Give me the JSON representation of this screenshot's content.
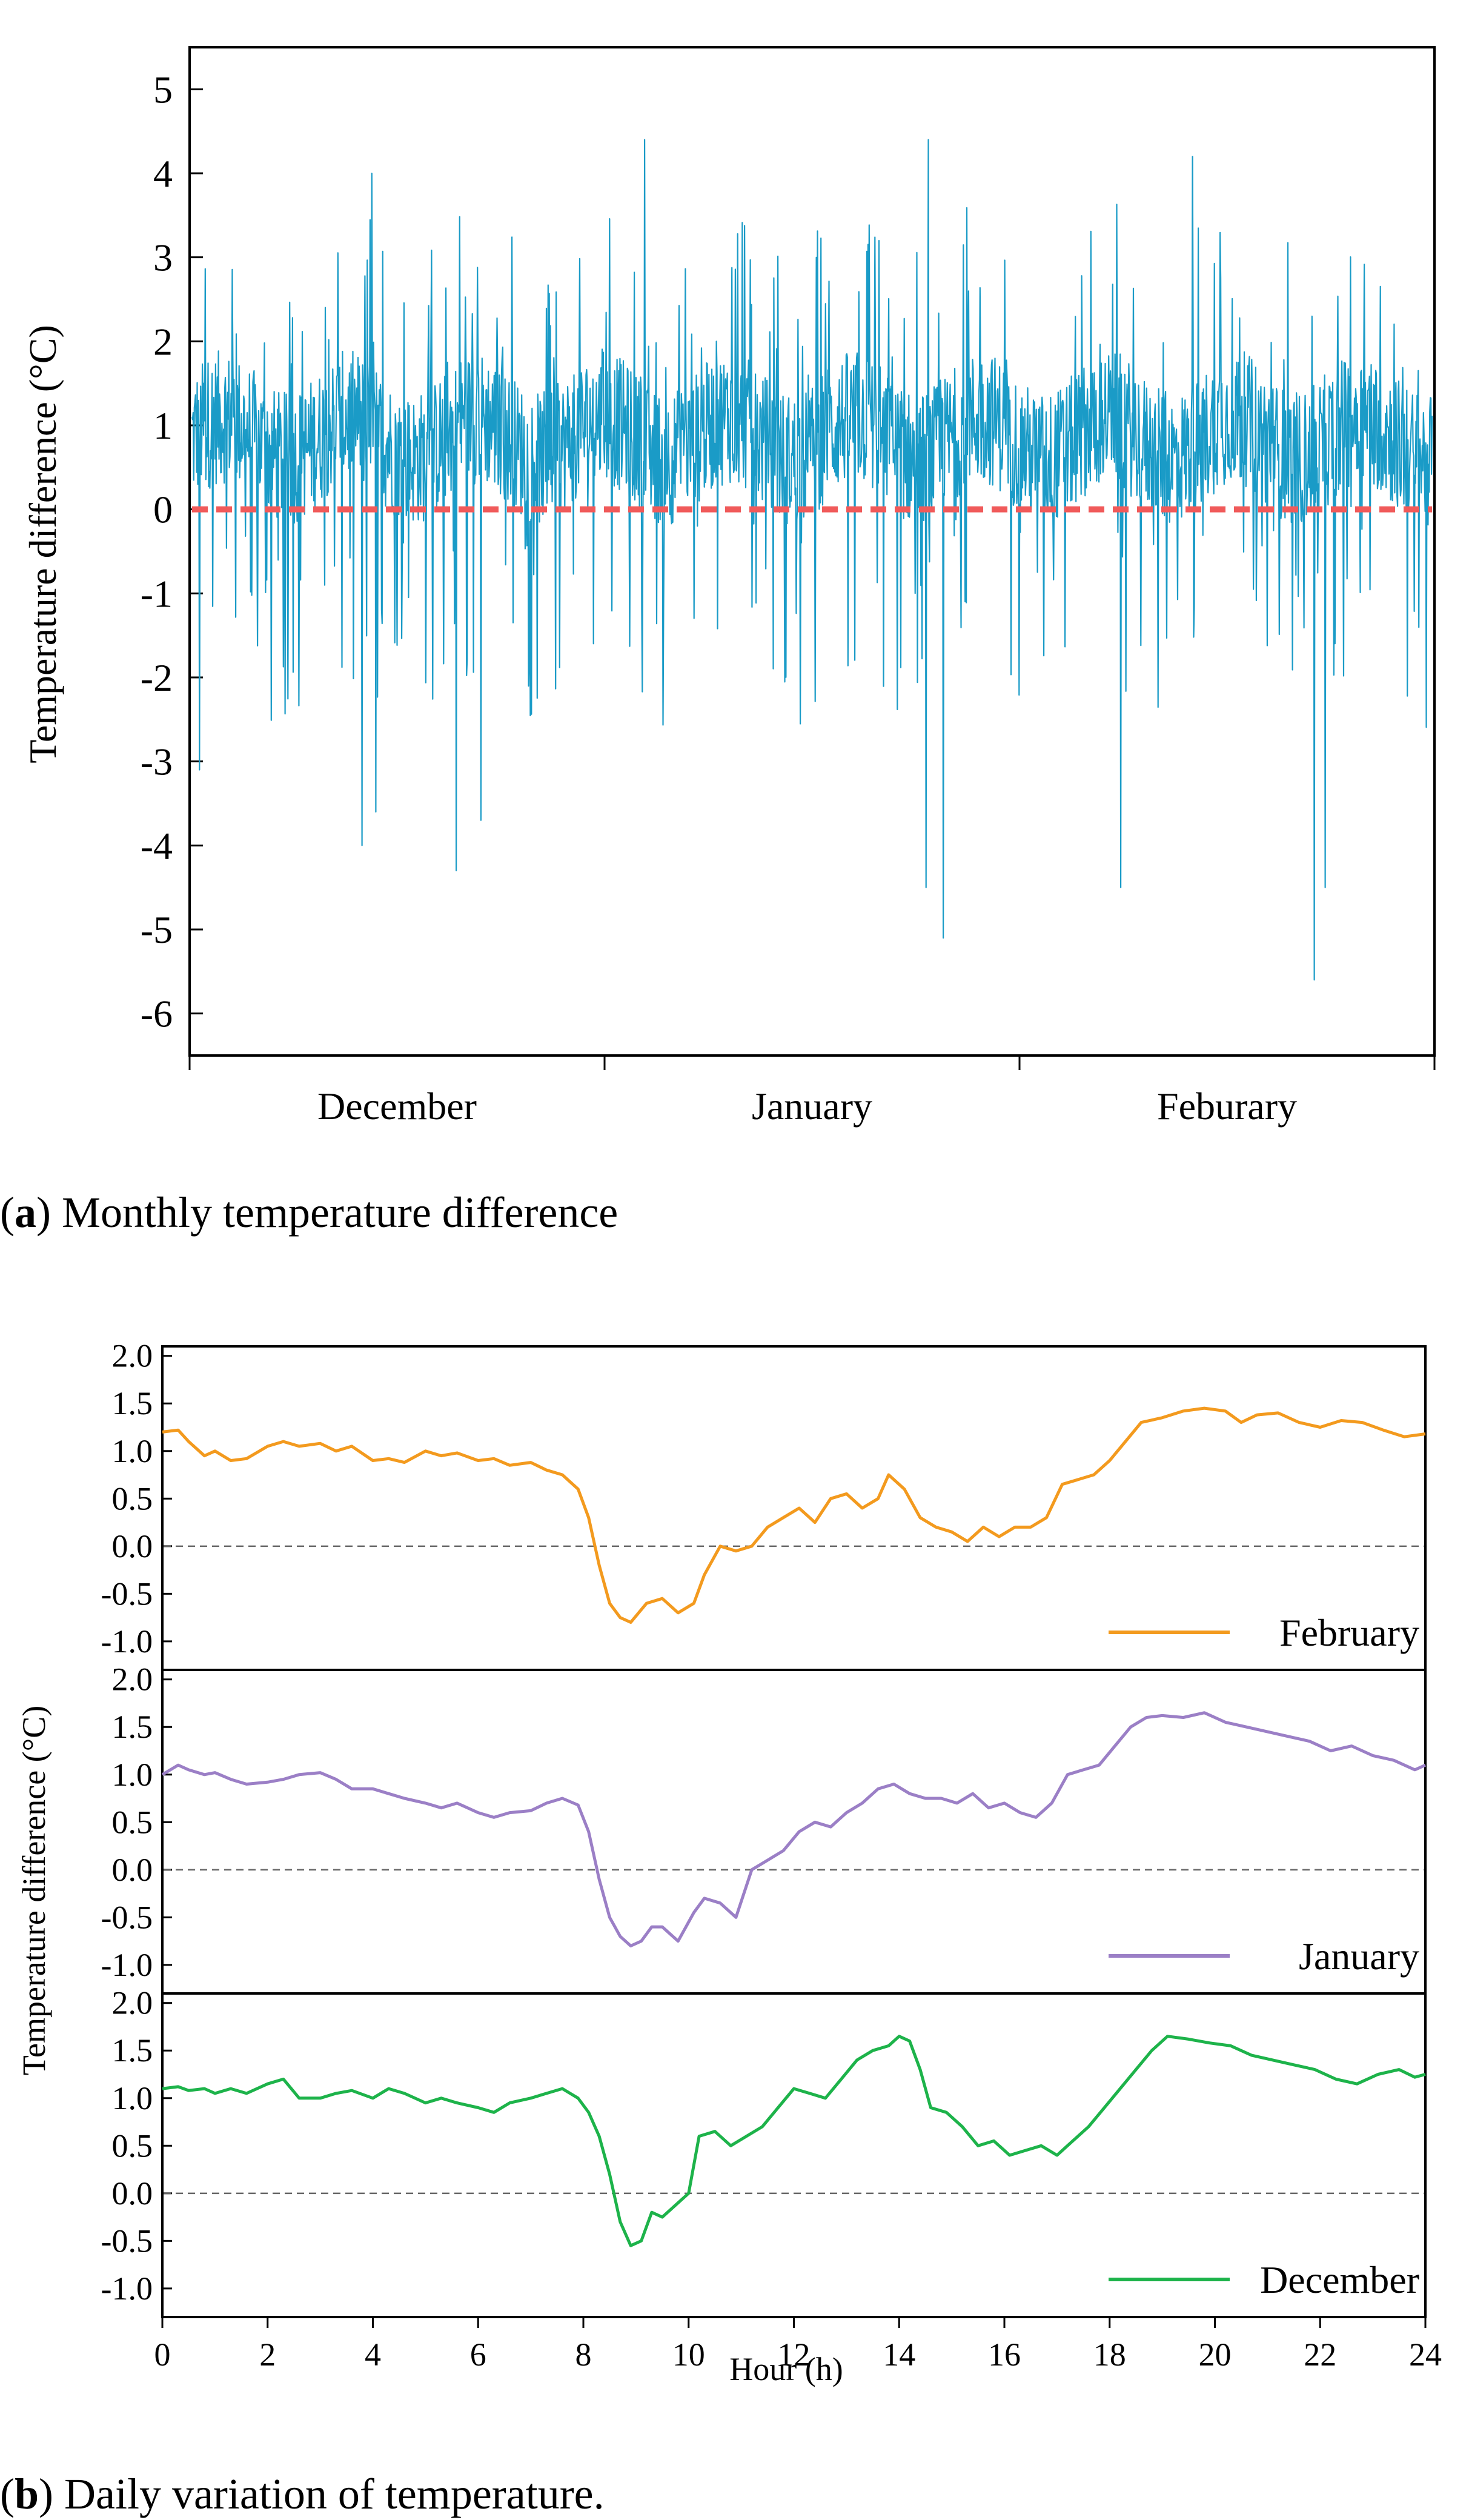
{
  "chart_data": [
    {
      "id": "monthly",
      "type": "line",
      "caption_letter": "a",
      "caption_text": ") Monthly temperature difference",
      "ylabel": "Temperature difference (°C)",
      "ylim": [
        -6.5,
        5.5
      ],
      "yticks": [
        5,
        4,
        3,
        2,
        1,
        0,
        -1,
        -2,
        -3,
        -4,
        -5,
        -6
      ],
      "ytick_labels": [
        "5",
        "4",
        "3",
        "2",
        "1",
        "0",
        "-1",
        "-2",
        "-3",
        "-4",
        "-5",
        "-6"
      ],
      "x_categories": [
        "December",
        "January",
        "Feburary"
      ],
      "baseline": 0,
      "series": [
        {
          "name": "Temperature difference",
          "color": "#1a9bc7",
          "sample_note": "hourly series approximated; salient extremes listed",
          "extremes": [
            {
              "fraction": 0.006,
              "value": -3.1
            },
            {
              "fraction": 0.145,
              "value": 4.0
            },
            {
              "fraction": 0.137,
              "value": -4.0
            },
            {
              "fraction": 0.148,
              "value": -3.6
            },
            {
              "fraction": 0.213,
              "value": -4.3
            },
            {
              "fraction": 0.233,
              "value": -3.7
            },
            {
              "fraction": 0.365,
              "value": 4.4
            },
            {
              "fraction": 0.594,
              "value": 4.4
            },
            {
              "fraction": 0.592,
              "value": -4.5
            },
            {
              "fraction": 0.606,
              "value": -5.1
            },
            {
              "fraction": 0.749,
              "value": -4.5
            },
            {
              "fraction": 0.807,
              "value": 4.2
            },
            {
              "fraction": 0.905,
              "value": -5.6
            },
            {
              "fraction": 0.914,
              "value": -4.5
            }
          ]
        }
      ]
    },
    {
      "id": "daily",
      "type": "line",
      "caption_letter": "b",
      "caption_text": ") Daily variation of temperature.",
      "ylabel": "Temperature difference (°C)",
      "xlabel": "Hour (h)",
      "xlim": [
        0,
        24
      ],
      "xticks": [
        0,
        2,
        4,
        6,
        8,
        10,
        12,
        14,
        16,
        18,
        20,
        22,
        24
      ],
      "xtick_labels": [
        "0",
        "2",
        "4",
        "6",
        "8",
        "10",
        "12",
        "14",
        "16",
        "18",
        "20",
        "22",
        "24"
      ],
      "ylim": [
        -1.3,
        2.1
      ],
      "yticks": [
        2.0,
        1.5,
        1.0,
        0.5,
        0.0,
        -0.5,
        -1.0
      ],
      "ytick_labels": [
        "2.0",
        "1.5",
        "1.0",
        "0.5",
        "0.0",
        "-0.5",
        "-1.0"
      ],
      "panels": [
        {
          "name": "February",
          "color": "#f39a1e",
          "x": [
            0,
            0.3,
            0.5,
            0.8,
            1.0,
            1.3,
            1.6,
            2.0,
            2.3,
            2.6,
            3.0,
            3.3,
            3.6,
            4.0,
            4.3,
            4.6,
            5.0,
            5.3,
            5.6,
            6.0,
            6.3,
            6.6,
            7.0,
            7.3,
            7.6,
            7.9,
            8.1,
            8.3,
            8.5,
            8.7,
            8.9,
            9.2,
            9.5,
            9.8,
            10.1,
            10.3,
            10.6,
            10.9,
            11.2,
            11.5,
            11.8,
            12.1,
            12.4,
            12.7,
            13.0,
            13.3,
            13.6,
            13.8,
            14.1,
            14.4,
            14.7,
            15.0,
            15.3,
            15.6,
            15.9,
            16.2,
            16.5,
            16.8,
            17.1,
            17.4,
            17.7,
            18.0,
            18.3,
            18.6,
            19.0,
            19.4,
            19.8,
            20.2,
            20.5,
            20.8,
            21.2,
            21.6,
            22.0,
            22.4,
            22.8,
            23.2,
            23.6,
            24.0
          ],
          "y": [
            1.2,
            1.22,
            1.1,
            0.95,
            1.0,
            0.9,
            0.92,
            1.05,
            1.1,
            1.05,
            1.08,
            1.0,
            1.05,
            0.9,
            0.92,
            0.88,
            1.0,
            0.95,
            0.98,
            0.9,
            0.92,
            0.85,
            0.88,
            0.8,
            0.75,
            0.6,
            0.3,
            -0.2,
            -0.6,
            -0.75,
            -0.8,
            -0.6,
            -0.55,
            -0.7,
            -0.6,
            -0.3,
            0.0,
            -0.05,
            0.0,
            0.2,
            0.3,
            0.4,
            0.25,
            0.5,
            0.55,
            0.4,
            0.5,
            0.75,
            0.6,
            0.3,
            0.2,
            0.15,
            0.05,
            0.2,
            0.1,
            0.2,
            0.2,
            0.3,
            0.65,
            0.7,
            0.75,
            0.9,
            1.1,
            1.3,
            1.35,
            1.42,
            1.45,
            1.42,
            1.3,
            1.38,
            1.4,
            1.3,
            1.25,
            1.32,
            1.3,
            1.22,
            1.15,
            1.18
          ]
        },
        {
          "name": "January",
          "color": "#9b7fc6",
          "x": [
            0,
            0.3,
            0.5,
            0.8,
            1.0,
            1.3,
            1.6,
            2.0,
            2.3,
            2.6,
            3.0,
            3.3,
            3.6,
            4.0,
            4.3,
            4.6,
            5.0,
            5.3,
            5.6,
            6.0,
            6.3,
            6.6,
            7.0,
            7.3,
            7.6,
            7.9,
            8.1,
            8.3,
            8.5,
            8.7,
            8.9,
            9.1,
            9.3,
            9.5,
            9.8,
            10.1,
            10.3,
            10.6,
            10.9,
            11.2,
            11.5,
            11.8,
            12.1,
            12.4,
            12.7,
            13.0,
            13.3,
            13.6,
            13.9,
            14.2,
            14.5,
            14.8,
            15.1,
            15.4,
            15.7,
            16.0,
            16.3,
            16.6,
            16.9,
            17.2,
            17.5,
            17.8,
            18.1,
            18.4,
            18.7,
            19.0,
            19.4,
            19.8,
            20.2,
            20.6,
            21.0,
            21.4,
            21.8,
            22.2,
            22.6,
            23.0,
            23.4,
            23.8,
            24.0
          ],
          "y": [
            1.0,
            1.1,
            1.05,
            1.0,
            1.02,
            0.95,
            0.9,
            0.92,
            0.95,
            1.0,
            1.02,
            0.95,
            0.85,
            0.85,
            0.8,
            0.75,
            0.7,
            0.65,
            0.7,
            0.6,
            0.55,
            0.6,
            0.62,
            0.7,
            0.75,
            0.68,
            0.4,
            -0.1,
            -0.5,
            -0.7,
            -0.8,
            -0.75,
            -0.6,
            -0.6,
            -0.75,
            -0.45,
            -0.3,
            -0.35,
            -0.5,
            0.0,
            0.1,
            0.2,
            0.4,
            0.5,
            0.45,
            0.6,
            0.7,
            0.85,
            0.9,
            0.8,
            0.75,
            0.75,
            0.7,
            0.8,
            0.65,
            0.7,
            0.6,
            0.55,
            0.7,
            1.0,
            1.05,
            1.1,
            1.3,
            1.5,
            1.6,
            1.62,
            1.6,
            1.65,
            1.55,
            1.5,
            1.45,
            1.4,
            1.35,
            1.25,
            1.3,
            1.2,
            1.15,
            1.05,
            1.1
          ]
        },
        {
          "name": "December",
          "color": "#1db34a",
          "x": [
            0,
            0.3,
            0.5,
            0.8,
            1.0,
            1.3,
            1.6,
            2.0,
            2.3,
            2.6,
            3.0,
            3.3,
            3.6,
            4.0,
            4.3,
            4.6,
            5.0,
            5.3,
            5.6,
            6.0,
            6.3,
            6.6,
            7.0,
            7.3,
            7.6,
            7.9,
            8.1,
            8.3,
            8.5,
            8.7,
            8.9,
            9.1,
            9.3,
            9.5,
            9.8,
            10.0,
            10.2,
            10.5,
            10.8,
            11.1,
            11.4,
            11.7,
            12.0,
            12.3,
            12.6,
            12.9,
            13.2,
            13.5,
            13.8,
            14.0,
            14.2,
            14.4,
            14.6,
            14.9,
            15.2,
            15.5,
            15.8,
            16.1,
            16.4,
            16.7,
            17.0,
            17.3,
            17.6,
            17.9,
            18.2,
            18.5,
            18.8,
            19.1,
            19.5,
            19.9,
            20.3,
            20.7,
            21.1,
            21.5,
            21.9,
            22.3,
            22.7,
            23.1,
            23.5,
            23.8,
            24.0
          ],
          "y": [
            1.1,
            1.12,
            1.08,
            1.1,
            1.05,
            1.1,
            1.05,
            1.15,
            1.2,
            1.0,
            1.0,
            1.05,
            1.08,
            1.0,
            1.1,
            1.05,
            0.95,
            1.0,
            0.95,
            0.9,
            0.85,
            0.95,
            1.0,
            1.05,
            1.1,
            1.0,
            0.85,
            0.6,
            0.2,
            -0.3,
            -0.55,
            -0.5,
            -0.2,
            -0.25,
            -0.1,
            0.0,
            0.6,
            0.65,
            0.5,
            0.6,
            0.7,
            0.9,
            1.1,
            1.05,
            1.0,
            1.2,
            1.4,
            1.5,
            1.55,
            1.65,
            1.6,
            1.3,
            0.9,
            0.85,
            0.7,
            0.5,
            0.55,
            0.4,
            0.45,
            0.5,
            0.4,
            0.55,
            0.7,
            0.9,
            1.1,
            1.3,
            1.5,
            1.65,
            1.62,
            1.58,
            1.55,
            1.45,
            1.4,
            1.35,
            1.3,
            1.2,
            1.15,
            1.25,
            1.3,
            1.22,
            1.25
          ]
        }
      ]
    }
  ]
}
